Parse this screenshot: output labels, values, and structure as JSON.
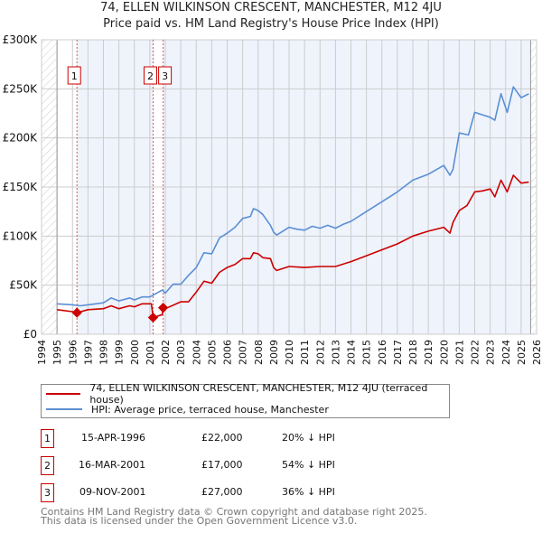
{
  "title_line1": "74, ELLEN WILKINSON CRESCENT, MANCHESTER, M12 4JU",
  "title_line2": "Price paid vs. HM Land Registry's House Price Index (HPI)",
  "colors": {
    "property": "#cc0000",
    "hpi": "#5b8fd4",
    "shade": "#eef3fc"
  },
  "chart_data": {
    "type": "line",
    "title": "74, ELLEN WILKINSON CRESCENT, MANCHESTER, M12 4JU — Price paid vs. HM Land Registry's House Price Index (HPI)",
    "xlim": [
      1994,
      2026
    ],
    "ylim": [
      0,
      300000
    ],
    "x_ticks": [
      "1994",
      "1995",
      "1996",
      "1997",
      "1998",
      "1999",
      "2000",
      "2001",
      "2002",
      "2003",
      "2004",
      "2005",
      "2006",
      "2007",
      "2008",
      "2009",
      "2010",
      "2011",
      "2012",
      "2013",
      "2014",
      "2015",
      "2016",
      "2017",
      "2018",
      "2019",
      "2020",
      "2021",
      "2022",
      "2023",
      "2024",
      "2025",
      "2026"
    ],
    "y_ticks": [
      {
        "v": 0,
        "label": "£0"
      },
      {
        "v": 50000,
        "label": "£50K"
      },
      {
        "v": 100000,
        "label": "£100K"
      },
      {
        "v": 150000,
        "label": "£150K"
      },
      {
        "v": 200000,
        "label": "£200K"
      },
      {
        "v": 250000,
        "label": "£250K"
      },
      {
        "v": 300000,
        "label": "£300K"
      }
    ],
    "grid": true,
    "series": [
      {
        "name": "74, ELLEN WILKINSON CRESCENT, MANCHESTER, M12 4JU (terraced house)",
        "color": "#cc0000",
        "x": [
          1995,
          1996,
          1996.29,
          1997,
          1998,
          1998.5,
          1999,
          1999.7,
          2000,
          2000.5,
          2001.1,
          2001.21,
          2001.8,
          2001.86,
          2002,
          2003,
          2003.5,
          2004,
          2004.5,
          2005,
          2005.5,
          2006,
          2006.5,
          2007,
          2007.5,
          2007.7,
          2008,
          2008.3,
          2008.8,
          2009,
          2009.2,
          2010,
          2011,
          2012,
          2013,
          2014,
          2015,
          2016,
          2017,
          2018,
          2019,
          2020,
          2020.4,
          2020.6,
          2021,
          2021.5,
          2022,
          2022.5,
          2023,
          2023.3,
          2023.7,
          2024.1,
          2024.5,
          2025,
          2025.5
        ],
        "y": [
          25000,
          23000,
          22000,
          25000,
          26000,
          29000,
          26000,
          29000,
          28000,
          31000,
          31000,
          17000,
          20000,
          27000,
          26000,
          33000,
          33000,
          43000,
          54000,
          52000,
          63000,
          68000,
          71000,
          77000,
          77000,
          83000,
          82000,
          78000,
          77000,
          68000,
          65000,
          69000,
          68000,
          69000,
          69000,
          74000,
          80000,
          86000,
          92000,
          100000,
          105000,
          109000,
          103000,
          114000,
          126000,
          131000,
          145000,
          146000,
          148000,
          140000,
          157000,
          145000,
          162000,
          154000,
          155000
        ]
      },
      {
        "name": "HPI: Average price, terraced house, Manchester",
        "color": "#5b8fd4",
        "x": [
          1995,
          1996,
          1996.5,
          1997,
          1998,
          1998.5,
          1999,
          1999.7,
          2000,
          2000.5,
          2001,
          2001.8,
          2002,
          2002.5,
          2003,
          2003.5,
          2004,
          2004.5,
          2005,
          2005.5,
          2006,
          2006.5,
          2007,
          2007.5,
          2007.7,
          2008,
          2008.3,
          2008.8,
          2009,
          2009.2,
          2010,
          2010.5,
          2011,
          2011.5,
          2012,
          2012.5,
          2013,
          2013.5,
          2014,
          2015,
          2016,
          2017,
          2018,
          2019,
          2020,
          2020.4,
          2020.6,
          2021,
          2021.6,
          2022,
          2023,
          2023.3,
          2023.7,
          2024.1,
          2024.5,
          2025,
          2025.5
        ],
        "y": [
          31000,
          30000,
          29000,
          30000,
          32000,
          37000,
          34000,
          37000,
          35000,
          38000,
          38000,
          45000,
          42000,
          51000,
          51000,
          60000,
          68000,
          83000,
          82000,
          98000,
          103000,
          109000,
          118000,
          120000,
          128000,
          126000,
          122000,
          111000,
          104000,
          101000,
          109000,
          107000,
          106000,
          110000,
          108000,
          111000,
          108000,
          112000,
          115000,
          125000,
          135000,
          145000,
          157000,
          163000,
          172000,
          162000,
          168000,
          205000,
          203000,
          226000,
          221000,
          218000,
          245000,
          226000,
          252000,
          241000,
          245000
        ]
      }
    ],
    "sales": [
      {
        "n": "1",
        "x": 1996.29,
        "y": 22000
      },
      {
        "n": "2",
        "x": 2001.21,
        "y": 17000
      },
      {
        "n": "3",
        "x": 2001.86,
        "y": 27000
      }
    ],
    "data_range": [
      1995,
      2025.5
    ],
    "legend_placement": "below"
  },
  "legend": [
    {
      "label": "74, ELLEN WILKINSON CRESCENT, MANCHESTER, M12 4JU (terraced house)"
    },
    {
      "label": "HPI: Average price, terraced house, Manchester"
    }
  ],
  "transactions": [
    {
      "n": "1",
      "date": "15-APR-1996",
      "price": "£22,000",
      "hpi": "20% ↓ HPI"
    },
    {
      "n": "2",
      "date": "16-MAR-2001",
      "price": "£17,000",
      "hpi": "54% ↓ HPI"
    },
    {
      "n": "3",
      "date": "09-NOV-2001",
      "price": "£27,000",
      "hpi": "36% ↓ HPI"
    }
  ],
  "footer": [
    "Contains HM Land Registry data © Crown copyright and database right 2025.",
    "This data is licensed under the Open Government Licence v3.0."
  ]
}
